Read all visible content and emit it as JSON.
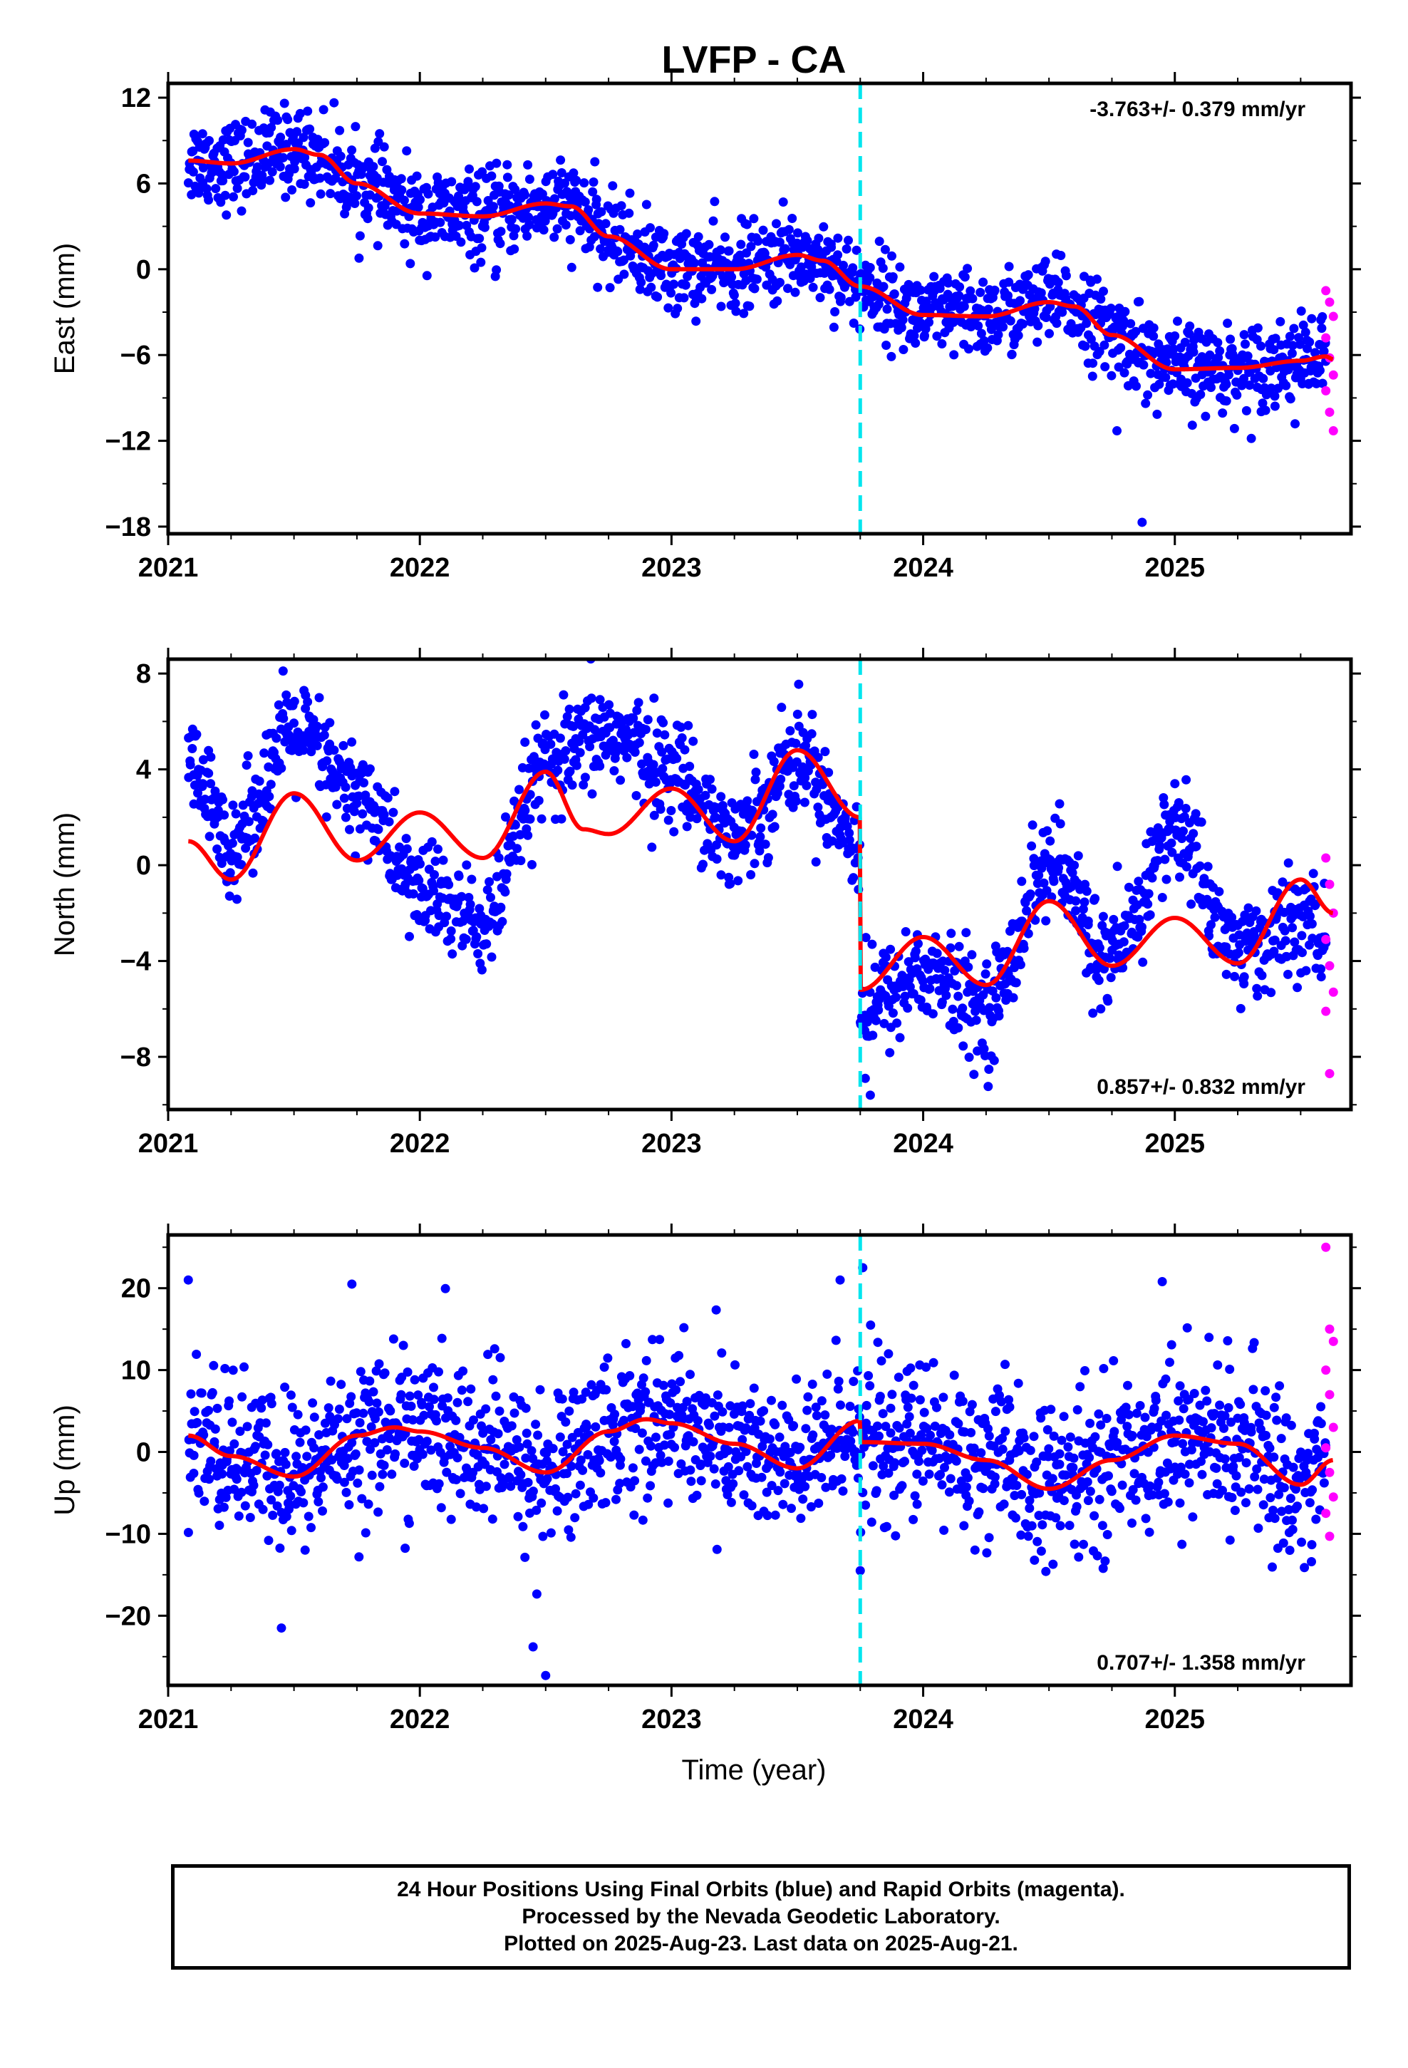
{
  "title": "LVFP - CA",
  "xlabel": "Time (year)",
  "colors": {
    "final_orbits": "#0000ff",
    "rapid_orbits": "#ff00ff",
    "model": "#ff0000",
    "offset_marker": "#00e5ee"
  },
  "footer": {
    "line1": "24 Hour Positions Using Final Orbits (blue) and Rapid Orbits (magenta).",
    "line2": "Processed by the Nevada Geodetic Laboratory.",
    "line3": "Plotted on 2025-Aug-23. Last data on 2025-Aug-21."
  },
  "chart_data": [
    {
      "type": "scatter",
      "ylabel": "East (mm)",
      "rate_label": "-3.763+/- 0.379 mm/yr",
      "rate_position": "top-right",
      "xlim": [
        2021.0,
        2025.7
      ],
      "ylim": [
        -18.5,
        13
      ],
      "yticks": [
        12,
        6,
        0,
        -6,
        -12,
        -18
      ],
      "xticks": [
        2021,
        2022,
        2023,
        2024,
        2025
      ],
      "data_start": 2021.08,
      "data_end": 2025.63,
      "offset_epoch": 2023.75,
      "model_curve": {
        "x": [
          2021.08,
          2021.25,
          2021.5,
          2021.6,
          2021.75,
          2022.0,
          2022.25,
          2022.5,
          2022.6,
          2022.75,
          2023.0,
          2023.25,
          2023.5,
          2023.6,
          2023.75,
          2024.0,
          2024.25,
          2024.5,
          2024.6,
          2024.75,
          2025.0,
          2025.25,
          2025.5,
          2025.6,
          2025.63
        ],
        "y": [
          7.6,
          7.4,
          8.4,
          8.0,
          6.0,
          3.9,
          3.7,
          4.6,
          4.4,
          2.3,
          0.0,
          0.0,
          1.0,
          0.6,
          -1.2,
          -3.2,
          -3.3,
          -2.3,
          -2.6,
          -4.6,
          -7.0,
          -6.9,
          -6.4,
          -6.1,
          -6.3
        ]
      },
      "scatter_sigma": 1.5,
      "outliers": [
        {
          "x": 2024.87,
          "y": -17.7
        },
        {
          "x": 2022.3,
          "y": -0.5
        },
        {
          "x": 2024.77,
          "y": -11.3
        }
      ],
      "rapid_points": {
        "x_range": [
          2025.6,
          2025.63
        ],
        "y": [
          -1.5,
          -2.3,
          -3.3,
          -4.8,
          -6.2,
          -7.4,
          -8.5,
          -10.0,
          -11.3
        ]
      }
    },
    {
      "type": "scatter",
      "ylabel": "North (mm)",
      "rate_label": "0.857+/- 0.832 mm/yr",
      "rate_position": "bottom-right",
      "xlim": [
        2021.0,
        2025.7
      ],
      "ylim": [
        -10.2,
        8.6
      ],
      "yticks": [
        8,
        4,
        0,
        -4,
        -8
      ],
      "xticks": [
        2021,
        2022,
        2023,
        2024,
        2025
      ],
      "data_start": 2021.08,
      "data_end": 2025.63,
      "offset_epoch": 2023.75,
      "model_curve": {
        "x": [
          2021.08,
          2021.25,
          2021.5,
          2021.75,
          2022.0,
          2022.25,
          2022.5,
          2022.65,
          2022.75,
          2023.0,
          2023.25,
          2023.5,
          2023.749,
          2023.751,
          2024.0,
          2024.25,
          2024.5,
          2024.75,
          2025.0,
          2025.25,
          2025.5,
          2025.63
        ],
        "y": [
          1.0,
          -0.6,
          3.0,
          0.2,
          2.2,
          0.3,
          3.9,
          1.5,
          1.3,
          3.2,
          1.0,
          4.8,
          2.0,
          -5.2,
          -3.0,
          -5.0,
          -1.5,
          -4.2,
          -2.2,
          -4.1,
          -0.6,
          -2.0
        ]
      },
      "signal_curve": {
        "x": [
          2021.08,
          2021.25,
          2021.5,
          2021.75,
          2022.0,
          2022.25,
          2022.5,
          2022.75,
          2023.0,
          2023.25,
          2023.5,
          2023.749,
          2023.751,
          2024.0,
          2024.25,
          2024.5,
          2024.75,
          2025.0,
          2025.25,
          2025.5,
          2025.63
        ],
        "y": [
          4.0,
          1.0,
          5.5,
          3.0,
          -1.0,
          -2.5,
          4.0,
          5.5,
          4.0,
          1.2,
          4.5,
          1.0,
          -6.0,
          -4.5,
          -6.0,
          0.0,
          -4.0,
          1.5,
          -3.5,
          -2.5,
          -3.5
        ]
      },
      "scatter_sigma": 1.2,
      "outliers": [
        {
          "x": 2023.77,
          "y": -8.9
        },
        {
          "x": 2023.79,
          "y": -9.6
        }
      ],
      "rapid_points": {
        "x_range": [
          2025.6,
          2025.63
        ],
        "y": [
          0.3,
          -0.8,
          -2.0,
          -3.1,
          -4.2,
          -5.3,
          -6.1,
          -8.7
        ]
      }
    },
    {
      "type": "scatter",
      "ylabel": "Up (mm)",
      "rate_label": "0.707+/- 1.358 mm/yr",
      "rate_position": "bottom-right",
      "xlim": [
        2021.0,
        2025.7
      ],
      "ylim": [
        -28.5,
        26.5
      ],
      "yticks": [
        20,
        10,
        0,
        -10,
        -20
      ],
      "xticks": [
        2021,
        2022,
        2023,
        2024,
        2025
      ],
      "data_start": 2021.08,
      "data_end": 2025.63,
      "offset_epoch": 2023.75,
      "model_curve": {
        "x": [
          2021.08,
          2021.25,
          2021.5,
          2021.75,
          2021.9,
          2022.0,
          2022.25,
          2022.5,
          2022.75,
          2022.9,
          2023.0,
          2023.25,
          2023.5,
          2023.749,
          2023.751,
          2024.0,
          2024.25,
          2024.5,
          2024.75,
          2025.0,
          2025.25,
          2025.5,
          2025.63
        ],
        "y": [
          2.0,
          -0.5,
          -3.0,
          2.0,
          3.0,
          2.5,
          0.5,
          -2.5,
          2.5,
          4.0,
          3.5,
          1.0,
          -2.0,
          3.8,
          1.2,
          1.0,
          -1.0,
          -4.5,
          -1.0,
          2.0,
          1.0,
          -4.0,
          -1.0
        ]
      },
      "scatter_sigma": 4.8,
      "outliers": [
        {
          "x": 2021.08,
          "y": 21.0
        },
        {
          "x": 2021.73,
          "y": 20.5
        },
        {
          "x": 2021.45,
          "y": -21.5
        },
        {
          "x": 2022.45,
          "y": -23.8
        },
        {
          "x": 2022.5,
          "y": -27.3
        },
        {
          "x": 2023.67,
          "y": 21.0
        },
        {
          "x": 2023.76,
          "y": 22.5
        },
        {
          "x": 2023.75,
          "y": -14.5
        },
        {
          "x": 2024.95,
          "y": 20.8
        }
      ],
      "rapid_points": {
        "x_range": [
          2025.6,
          2025.63
        ],
        "y": [
          25.0,
          15.0,
          13.5,
          10.0,
          7.0,
          3.0,
          0.5,
          -2.5,
          -5.5,
          -7.5,
          -10.3
        ]
      }
    }
  ]
}
